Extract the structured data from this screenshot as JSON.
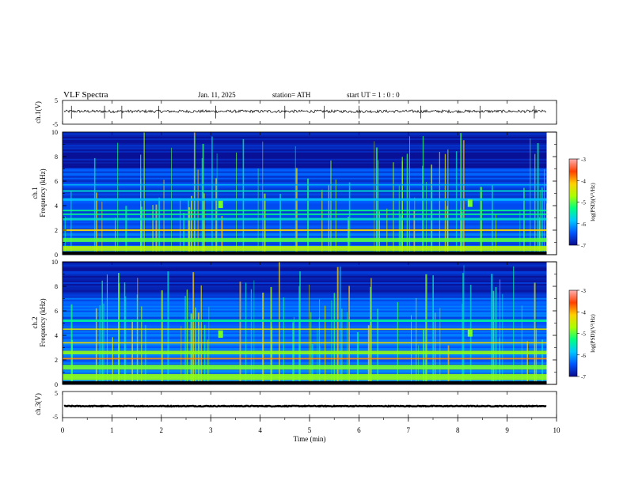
{
  "header": {
    "title": "VLF  Spectra",
    "date": "Jan.  11,  2025",
    "station": "station= ATH",
    "start": "start  UT  =    1  : 0   : 0"
  },
  "panels": {
    "ch1_waveform": {
      "ylabel": "ch.1(V)",
      "yticks": [
        "5",
        "-5"
      ],
      "ylim": [
        -5,
        5
      ]
    },
    "ch1_spectrogram": {
      "ylabel_line1": "ch.1",
      "ylabel_line2": "Frequency  (kHz)",
      "yticks": [
        "0",
        "2",
        "4",
        "6",
        "8",
        "10"
      ],
      "ylim": [
        0,
        10
      ]
    },
    "ch2_spectrogram": {
      "ylabel_line1": "ch.2",
      "ylabel_line2": "Frequency  (kHz)",
      "yticks": [
        "0",
        "2",
        "4",
        "6",
        "8",
        "10"
      ],
      "ylim": [
        0,
        10
      ]
    },
    "ch3_waveform": {
      "ylabel": "ch.3(V)",
      "yticks": [
        "5",
        "-5"
      ],
      "ylim": [
        -5,
        5
      ]
    }
  },
  "xaxis": {
    "label": "Time  (min)",
    "ticks": [
      "0",
      "1",
      "2",
      "3",
      "4",
      "5",
      "6",
      "7",
      "8",
      "9",
      "10"
    ],
    "xlim": [
      0,
      10
    ]
  },
  "colorbar": {
    "label": "log(PSD)(V²/Hz)",
    "ticks": [
      "-3",
      "-4",
      "-5",
      "-6",
      "-7"
    ],
    "range": [
      -7,
      -3
    ],
    "colors": [
      "#0a0a8c",
      "#0055ff",
      "#00c8ff",
      "#00ff80",
      "#aaff00",
      "#ffd000",
      "#ff4000",
      "#ffb0b0"
    ]
  },
  "chart_data": [
    {
      "type": "line",
      "title": "ch.1(V)",
      "xlim": [
        0,
        9.8
      ],
      "ylim": [
        -5,
        5
      ],
      "series": [
        {
          "baseline_value": 0.4,
          "noise_amplitude": 0.6
        }
      ]
    },
    {
      "type": "heatmap",
      "title": "ch.1",
      "xlabel": "Time  (min)",
      "ylabel": "Frequency  (kHz)",
      "xlim": [
        0,
        9.8
      ],
      "ylim": [
        0,
        10
      ],
      "background_log_psd": -6.6,
      "bands": [
        {
          "freq_khz": 0.5,
          "log_psd": -4.6,
          "width": 0.4
        },
        {
          "freq_khz": 1.2,
          "log_psd": -5.0,
          "width": 0.3
        },
        {
          "freq_khz": 2.0,
          "log_psd": -4.2,
          "width": 0.15
        },
        {
          "freq_khz": 2.9,
          "log_psd": -5.6,
          "width": 0.2
        },
        {
          "freq_khz": 3.3,
          "log_psd": -5.3,
          "width": 0.12
        },
        {
          "freq_khz": 3.6,
          "log_psd": -5.3,
          "width": 0.12
        },
        {
          "freq_khz": 4.5,
          "log_psd": -5.9,
          "width": 0.2
        },
        {
          "freq_khz": 5.2,
          "log_psd": -5.6,
          "width": 0.12
        },
        {
          "freq_khz": 5.7,
          "log_psd": -5.9,
          "width": 0.1
        }
      ],
      "burst_regions": [
        {
          "time_min": 3.2,
          "freq_range": [
            3.8,
            4.4
          ]
        },
        {
          "time_min": 8.25,
          "freq_range": [
            3.9,
            4.5
          ]
        }
      ]
    },
    {
      "type": "heatmap",
      "title": "ch.2",
      "xlabel": "Time  (min)",
      "ylabel": "Frequency  (kHz)",
      "xlim": [
        0,
        9.8
      ],
      "ylim": [
        0,
        10
      ],
      "background_log_psd": -6.5,
      "bands": [
        {
          "freq_khz": 0.6,
          "log_psd": -4.8,
          "width": 0.5
        },
        {
          "freq_khz": 1.4,
          "log_psd": -4.9,
          "width": 0.4
        },
        {
          "freq_khz": 2.1,
          "log_psd": -3.9,
          "width": 0.12
        },
        {
          "freq_khz": 2.6,
          "log_psd": -4.8,
          "width": 0.3
        },
        {
          "freq_khz": 3.4,
          "log_psd": -4.3,
          "width": 0.12
        },
        {
          "freq_khz": 4.5,
          "log_psd": -4.4,
          "width": 0.12
        },
        {
          "freq_khz": 5.2,
          "log_psd": -5.4,
          "width": 0.2
        }
      ],
      "burst_regions": [
        {
          "time_min": 3.2,
          "freq_range": [
            3.8,
            4.4
          ]
        },
        {
          "time_min": 8.25,
          "freq_range": [
            3.9,
            4.5
          ]
        }
      ]
    },
    {
      "type": "line",
      "title": "ch.3(V)",
      "xlim": [
        0,
        9.8
      ],
      "ylim": [
        -5,
        5
      ],
      "series": [
        {
          "baseline_value": -0.6,
          "noise_amplitude": 0.15
        }
      ]
    }
  ]
}
